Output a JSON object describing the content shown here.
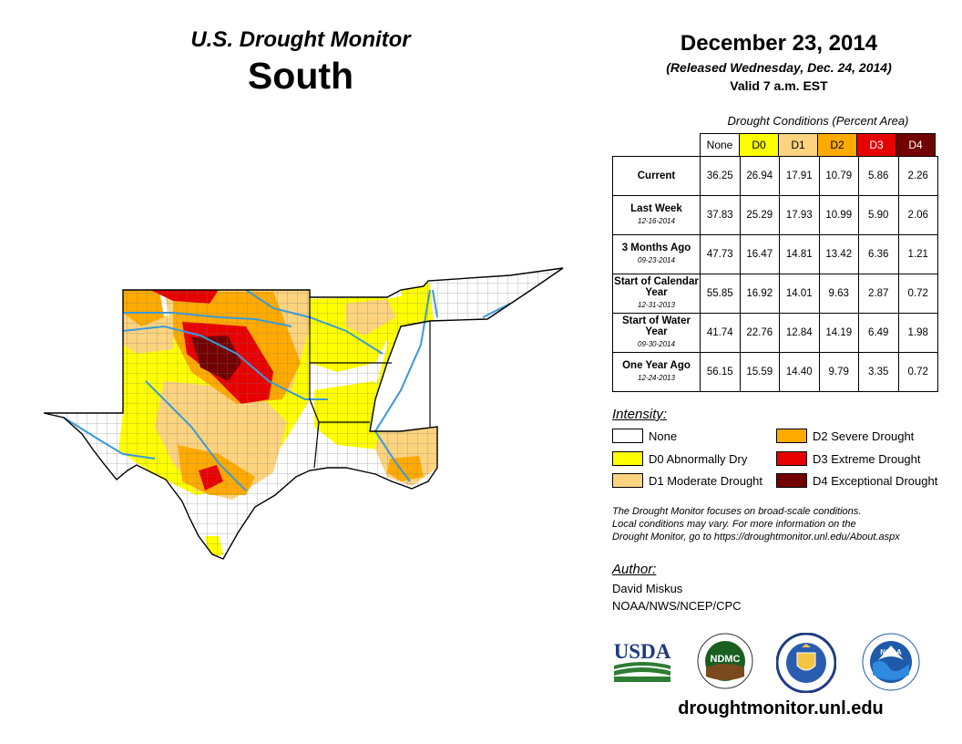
{
  "header": {
    "title": "U.S. Drought Monitor",
    "region": "South",
    "date": "December 23, 2014",
    "released": "(Released Wednesday, Dec. 24, 2014)",
    "valid": "Valid 7 a.m. EST"
  },
  "table": {
    "caption": "Drought Conditions (Percent Area)",
    "columns": [
      "None",
      "D0",
      "D1",
      "D2",
      "D3",
      "D4"
    ],
    "rows": [
      {
        "label": "Current",
        "date": "",
        "values": [
          "36.25",
          "26.94",
          "17.91",
          "10.79",
          "5.86",
          "2.26"
        ]
      },
      {
        "label": "Last Week",
        "date": "12-16-2014",
        "values": [
          "37.83",
          "25.29",
          "17.93",
          "10.99",
          "5.90",
          "2.06"
        ]
      },
      {
        "label": "3 Months Ago",
        "date": "09-23-2014",
        "values": [
          "47.73",
          "16.47",
          "14.81",
          "13.42",
          "6.36",
          "1.21"
        ]
      },
      {
        "label": "Start of Calendar Year",
        "date": "12-31-2013",
        "values": [
          "55.85",
          "16.92",
          "14.01",
          "9.63",
          "2.87",
          "0.72"
        ]
      },
      {
        "label": "Start of Water Year",
        "date": "09-30-2014",
        "values": [
          "41.74",
          "22.76",
          "12.84",
          "14.19",
          "6.49",
          "1.98"
        ]
      },
      {
        "label": "One Year Ago",
        "date": "12-24-2013",
        "values": [
          "56.15",
          "15.59",
          "14.40",
          "9.79",
          "3.35",
          "0.72"
        ]
      }
    ]
  },
  "legend": {
    "title": "Intensity:",
    "items": [
      {
        "label": "None",
        "color": "#ffffff"
      },
      {
        "label": "D0 Abnormally Dry",
        "color": "#ffff00"
      },
      {
        "label": "D1 Moderate Drought",
        "color": "#fcd37f"
      },
      {
        "label": "D2 Severe Drought",
        "color": "#ffaa00"
      },
      {
        "label": "D3 Extreme Drought",
        "color": "#e60000"
      },
      {
        "label": "D4 Exceptional Drought",
        "color": "#730000"
      }
    ]
  },
  "note": {
    "line1": "The Drought Monitor focuses on broad-scale conditions.",
    "line2": "Local conditions may vary. For more information on the",
    "line3": "Drought Monitor, go to https://droughtmonitor.unl.edu/About.aspx"
  },
  "author": {
    "title": "Author:",
    "name": "David Miskus",
    "org": "NOAA/NWS/NCEP/CPC"
  },
  "logos": {
    "usda": "USDA",
    "ndmc": "NDMC",
    "noaa": "NOAA"
  },
  "website": "droughtmonitor.unl.edu",
  "map_colors": {
    "none": "#ffffff",
    "d0": "#ffff00",
    "d1": "#fcd37f",
    "d2": "#ffaa00",
    "d3": "#e60000",
    "d4": "#730000",
    "river": "#3a9ad9",
    "border": "#000000",
    "county": "#6e6e6e"
  }
}
